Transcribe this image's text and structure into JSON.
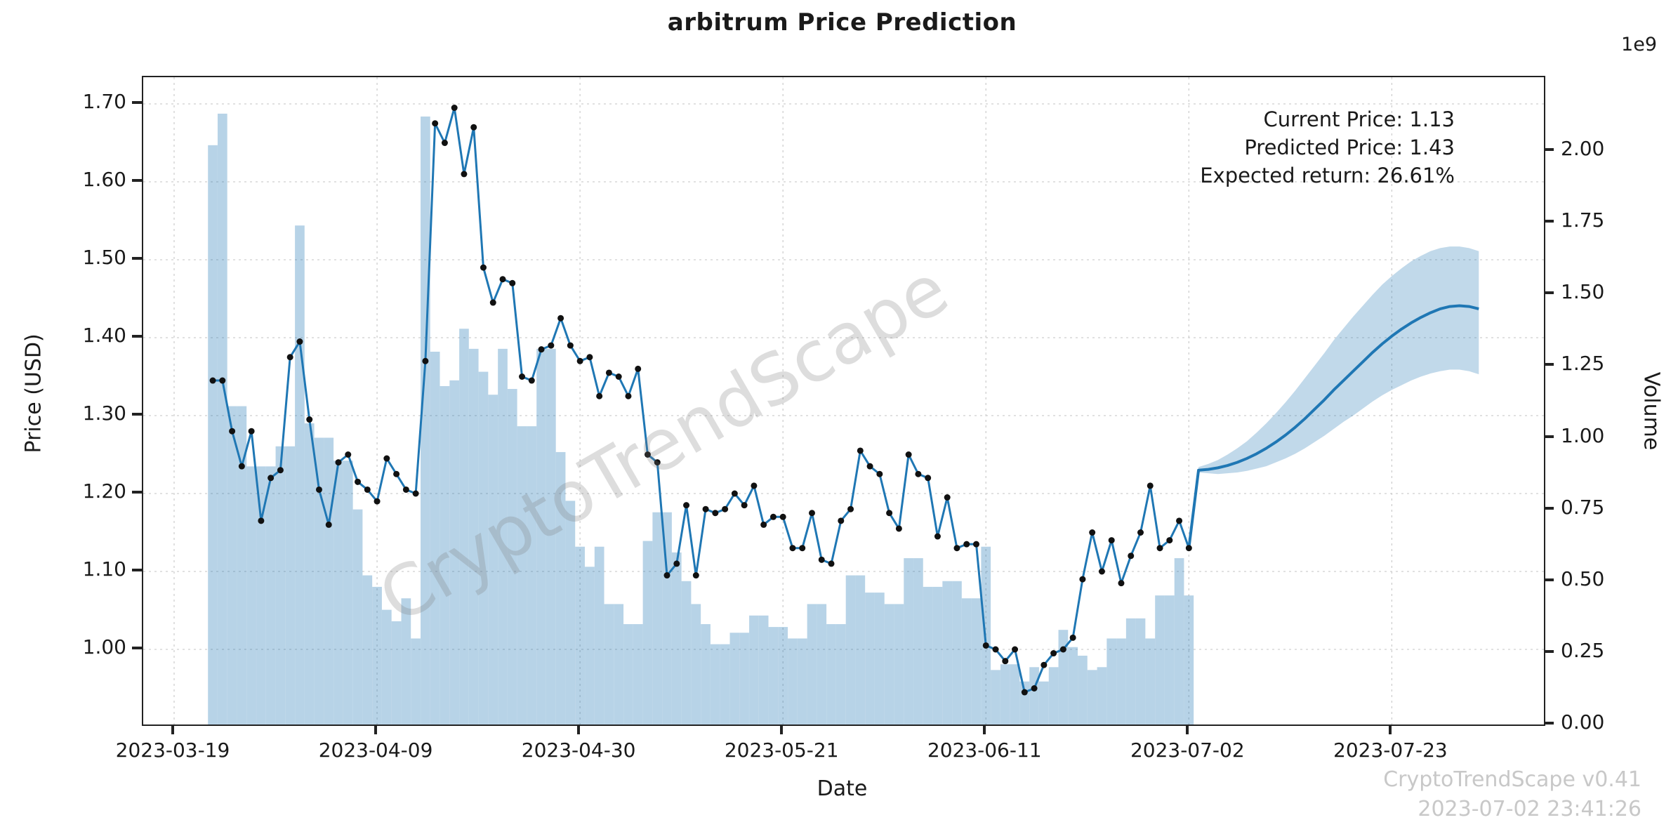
{
  "title": "arbitrum Price Prediction",
  "watermark": "CryptoTrendScape",
  "annotation": {
    "lines": [
      "Current Price: 1.13",
      "Predicted Price: 1.43",
      "Expected return: 26.61%"
    ]
  },
  "footer": {
    "line1": "CryptoTrendScape v0.41",
    "line2": "2023-07-02 23:41:26"
  },
  "axes": {
    "x_label": "Date",
    "y_left_label": "Price (USD)",
    "y_right_label": "Volume",
    "y_right_exponent": "1e9",
    "x_ticks": [
      "2023-03-19",
      "2023-04-09",
      "2023-04-30",
      "2023-05-21",
      "2023-06-11",
      "2023-07-02",
      "2023-07-23"
    ],
    "y_left_ticks": [
      "1.00",
      "1.10",
      "1.20",
      "1.30",
      "1.40",
      "1.50",
      "1.60",
      "1.70"
    ],
    "y_right_ticks": [
      "0.00",
      "0.25",
      "0.50",
      "0.75",
      "1.00",
      "1.25",
      "1.50",
      "1.75",
      "2.00"
    ]
  },
  "colors": {
    "line": "#1f77b4",
    "dot": "#111111",
    "volume_bar": "rgba(31,119,180,0.32)",
    "band": "rgba(31,119,180,0.28)",
    "grid": "#cfcfcf"
  },
  "chart_data": {
    "type": "line",
    "title": "arbitrum Price Prediction",
    "xlabel": "Date",
    "ylabel_left": "Price (USD)",
    "ylabel_right": "Volume",
    "x_axis_start": "2023-03-19",
    "price_ylim": [
      0.9,
      1.735
    ],
    "volume_ylim_1e9": [
      0,
      2.26
    ],
    "grid": true,
    "series": [
      {
        "name": "historical_price",
        "dates": [
          "2023-03-23",
          "2023-03-24",
          "2023-03-25",
          "2023-03-26",
          "2023-03-27",
          "2023-03-28",
          "2023-03-29",
          "2023-03-30",
          "2023-03-31",
          "2023-04-01",
          "2023-04-02",
          "2023-04-03",
          "2023-04-04",
          "2023-04-05",
          "2023-04-06",
          "2023-04-07",
          "2023-04-08",
          "2023-04-09",
          "2023-04-10",
          "2023-04-11",
          "2023-04-12",
          "2023-04-13",
          "2023-04-14",
          "2023-04-15",
          "2023-04-16",
          "2023-04-17",
          "2023-04-18",
          "2023-04-19",
          "2023-04-20",
          "2023-04-21",
          "2023-04-22",
          "2023-04-23",
          "2023-04-24",
          "2023-04-25",
          "2023-04-26",
          "2023-04-27",
          "2023-04-28",
          "2023-04-29",
          "2023-04-30",
          "2023-05-01",
          "2023-05-02",
          "2023-05-03",
          "2023-05-04",
          "2023-05-05",
          "2023-05-06",
          "2023-05-07",
          "2023-05-08",
          "2023-05-09",
          "2023-05-10",
          "2023-05-11",
          "2023-05-12",
          "2023-05-13",
          "2023-05-14",
          "2023-05-15",
          "2023-05-16",
          "2023-05-17",
          "2023-05-18",
          "2023-05-19",
          "2023-05-20",
          "2023-05-21",
          "2023-05-22",
          "2023-05-23",
          "2023-05-24",
          "2023-05-25",
          "2023-05-26",
          "2023-05-27",
          "2023-05-28",
          "2023-05-29",
          "2023-05-30",
          "2023-05-31",
          "2023-06-01",
          "2023-06-02",
          "2023-06-03",
          "2023-06-04",
          "2023-06-05",
          "2023-06-06",
          "2023-06-07",
          "2023-06-08",
          "2023-06-09",
          "2023-06-10",
          "2023-06-11",
          "2023-06-12",
          "2023-06-13",
          "2023-06-14",
          "2023-06-15",
          "2023-06-16",
          "2023-06-17",
          "2023-06-18",
          "2023-06-19",
          "2023-06-20",
          "2023-06-21",
          "2023-06-22",
          "2023-06-23",
          "2023-06-24",
          "2023-06-25",
          "2023-06-26",
          "2023-06-27",
          "2023-06-28",
          "2023-06-29",
          "2023-06-30",
          "2023-07-01",
          "2023-07-02"
        ],
        "values": [
          1.345,
          1.345,
          1.28,
          1.235,
          1.28,
          1.165,
          1.22,
          1.23,
          1.375,
          1.395,
          1.295,
          1.205,
          1.16,
          1.24,
          1.25,
          1.215,
          1.205,
          1.19,
          1.245,
          1.225,
          1.205,
          1.2,
          1.37,
          1.675,
          1.65,
          1.695,
          1.61,
          1.67,
          1.49,
          1.445,
          1.475,
          1.47,
          1.35,
          1.345,
          1.385,
          1.39,
          1.425,
          1.39,
          1.37,
          1.375,
          1.325,
          1.355,
          1.35,
          1.325,
          1.36,
          1.25,
          1.24,
          1.095,
          1.11,
          1.185,
          1.095,
          1.18,
          1.175,
          1.18,
          1.2,
          1.185,
          1.21,
          1.16,
          1.17,
          1.17,
          1.13,
          1.13,
          1.175,
          1.115,
          1.11,
          1.165,
          1.18,
          1.255,
          1.235,
          1.225,
          1.175,
          1.155,
          1.25,
          1.225,
          1.22,
          1.145,
          1.195,
          1.13,
          1.135,
          1.135,
          1.005,
          1.0,
          0.985,
          1.0,
          0.945,
          0.95,
          0.98,
          0.995,
          1.0,
          1.015,
          1.09,
          1.15,
          1.1,
          1.14,
          1.085,
          1.12,
          1.15,
          1.21,
          1.13,
          1.14,
          1.165,
          1.13
        ]
      },
      {
        "name": "volume_1e9",
        "values": [
          2.02,
          2.13,
          1.11,
          1.11,
          0.9,
          0.9,
          0.9,
          0.97,
          0.97,
          1.74,
          1.05,
          1.0,
          1.0,
          0.92,
          0.92,
          0.75,
          0.52,
          0.48,
          0.4,
          0.36,
          0.44,
          0.3,
          2.12,
          1.3,
          1.18,
          1.2,
          1.38,
          1.31,
          1.23,
          1.15,
          1.31,
          1.17,
          1.04,
          1.04,
          1.31,
          1.31,
          0.95,
          0.78,
          0.62,
          0.55,
          0.62,
          0.42,
          0.42,
          0.35,
          0.35,
          0.64,
          0.74,
          0.74,
          0.6,
          0.5,
          0.42,
          0.35,
          0.28,
          0.28,
          0.32,
          0.32,
          0.38,
          0.38,
          0.34,
          0.34,
          0.3,
          0.3,
          0.42,
          0.42,
          0.35,
          0.35,
          0.52,
          0.52,
          0.46,
          0.46,
          0.42,
          0.42,
          0.58,
          0.58,
          0.48,
          0.48,
          0.5,
          0.5,
          0.44,
          0.44,
          0.62,
          0.19,
          0.21,
          0.21,
          0.15,
          0.2,
          0.15,
          0.2,
          0.33,
          0.27,
          0.24,
          0.19,
          0.2,
          0.3,
          0.3,
          0.37,
          0.37,
          0.3,
          0.45,
          0.45,
          0.58,
          0.45
        ]
      },
      {
        "name": "predicted_price",
        "dates": [
          "2023-07-03",
          "2023-07-04",
          "2023-07-05",
          "2023-07-06",
          "2023-07-07",
          "2023-07-08",
          "2023-07-09",
          "2023-07-10",
          "2023-07-11",
          "2023-07-12",
          "2023-07-13",
          "2023-07-14",
          "2023-07-15",
          "2023-07-16",
          "2023-07-17",
          "2023-07-18",
          "2023-07-19",
          "2023-07-20",
          "2023-07-21",
          "2023-07-22",
          "2023-07-23",
          "2023-07-24",
          "2023-07-25",
          "2023-07-26",
          "2023-07-27",
          "2023-07-28",
          "2023-07-29",
          "2023-07-30",
          "2023-07-31",
          "2023-08-01"
        ],
        "mean": [
          1.23,
          1.231,
          1.233,
          1.236,
          1.24,
          1.245,
          1.251,
          1.258,
          1.266,
          1.275,
          1.285,
          1.296,
          1.308,
          1.32,
          1.333,
          1.345,
          1.357,
          1.369,
          1.381,
          1.392,
          1.402,
          1.411,
          1.419,
          1.426,
          1.432,
          1.437,
          1.44,
          1.441,
          1.44,
          1.437
        ],
        "upper": [
          1.234,
          1.238,
          1.243,
          1.25,
          1.258,
          1.267,
          1.278,
          1.29,
          1.303,
          1.317,
          1.332,
          1.348,
          1.364,
          1.38,
          1.397,
          1.412,
          1.427,
          1.441,
          1.455,
          1.468,
          1.479,
          1.489,
          1.498,
          1.505,
          1.511,
          1.515,
          1.517,
          1.517,
          1.515,
          1.511
        ],
        "lower": [
          1.227,
          1.226,
          1.225,
          1.226,
          1.227,
          1.229,
          1.232,
          1.235,
          1.24,
          1.245,
          1.251,
          1.258,
          1.266,
          1.274,
          1.283,
          1.292,
          1.3,
          1.309,
          1.318,
          1.326,
          1.333,
          1.339,
          1.345,
          1.35,
          1.354,
          1.357,
          1.359,
          1.359,
          1.357,
          1.353
        ]
      }
    ],
    "annotations": {
      "current_price": 1.13,
      "predicted_price": 1.43,
      "expected_return_pct": 26.61
    }
  }
}
